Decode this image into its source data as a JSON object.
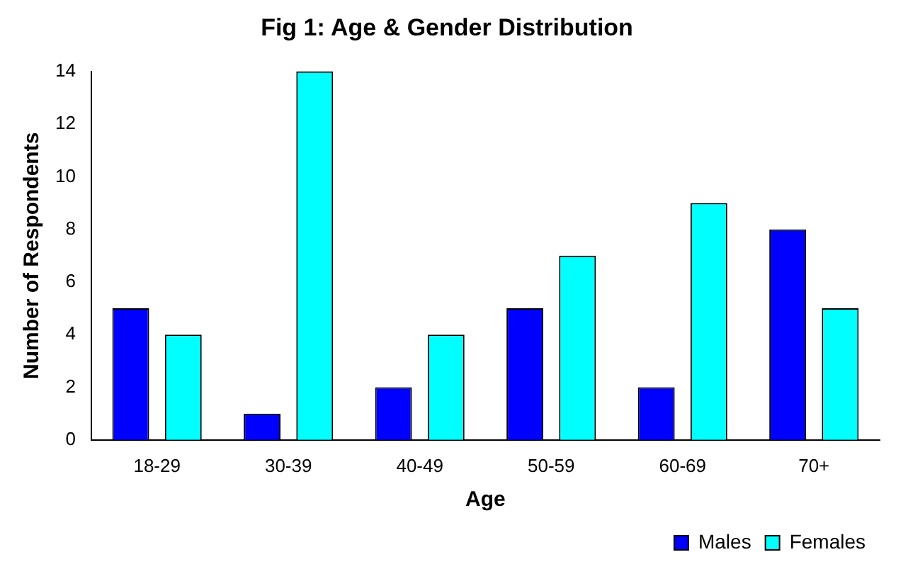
{
  "chart_data": {
    "type": "bar",
    "title": "Fig 1: Age & Gender Distribution",
    "xlabel": "Age",
    "ylabel": "Number of Respondents",
    "categories": [
      "18-29",
      "30-39",
      "40-49",
      "50-59",
      "60-69",
      "70+"
    ],
    "series": [
      {
        "name": "Males",
        "color": "#0000ff",
        "values": [
          5,
          1,
          2,
          5,
          2,
          8
        ]
      },
      {
        "name": "Females",
        "color": "#00ffff",
        "values": [
          4,
          14,
          4,
          7,
          9,
          5
        ]
      }
    ],
    "ylim": [
      0,
      14
    ],
    "yticks": [
      0,
      2,
      4,
      6,
      8,
      10,
      12,
      14
    ],
    "grid": false,
    "legend": "bottom right"
  }
}
